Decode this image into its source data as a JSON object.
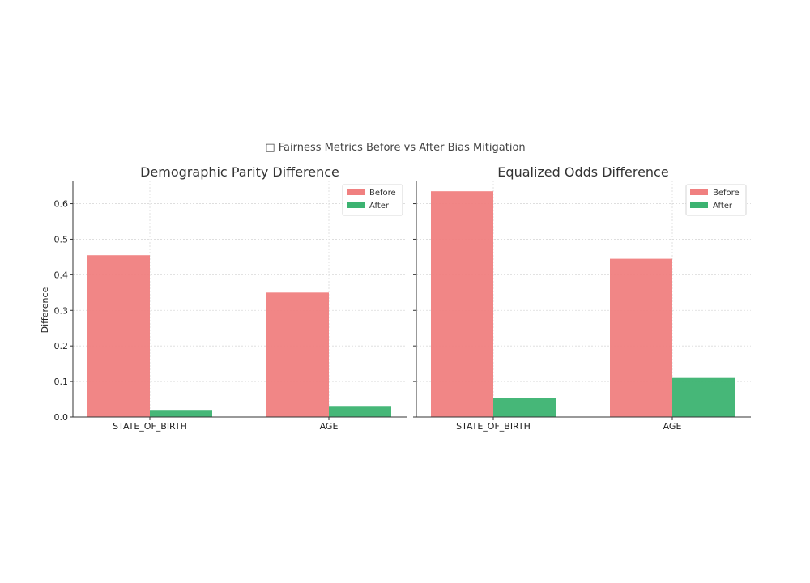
{
  "figure": {
    "title": "□ Fairness Metrics Before vs After Bias Mitigation"
  },
  "chart_data": [
    {
      "type": "bar",
      "title": "Demographic Parity Difference",
      "xlabel": "",
      "ylabel": "Difference",
      "categories": [
        "STATE_OF_BIRTH",
        "AGE"
      ],
      "series": [
        {
          "name": "Before",
          "values": [
            0.455,
            0.35
          ],
          "color": "#f08080"
        },
        {
          "name": "After",
          "values": [
            0.02,
            0.029
          ],
          "color": "#3cb371"
        }
      ],
      "ylim": [
        0,
        0.665
      ],
      "yticks": [
        "0.0",
        "0.1",
        "0.2",
        "0.3",
        "0.4",
        "0.5",
        "0.6"
      ],
      "grid": true,
      "legend": "top-right"
    },
    {
      "type": "bar",
      "title": "Equalized Odds Difference",
      "xlabel": "",
      "ylabel": "",
      "categories": [
        "STATE_OF_BIRTH",
        "AGE"
      ],
      "series": [
        {
          "name": "Before",
          "values": [
            0.635,
            0.445
          ],
          "color": "#f08080"
        },
        {
          "name": "After",
          "values": [
            0.053,
            0.11
          ],
          "color": "#3cb371"
        }
      ],
      "ylim": [
        0,
        0.665
      ],
      "yticks": [],
      "grid": true,
      "legend": "top-right"
    }
  ]
}
